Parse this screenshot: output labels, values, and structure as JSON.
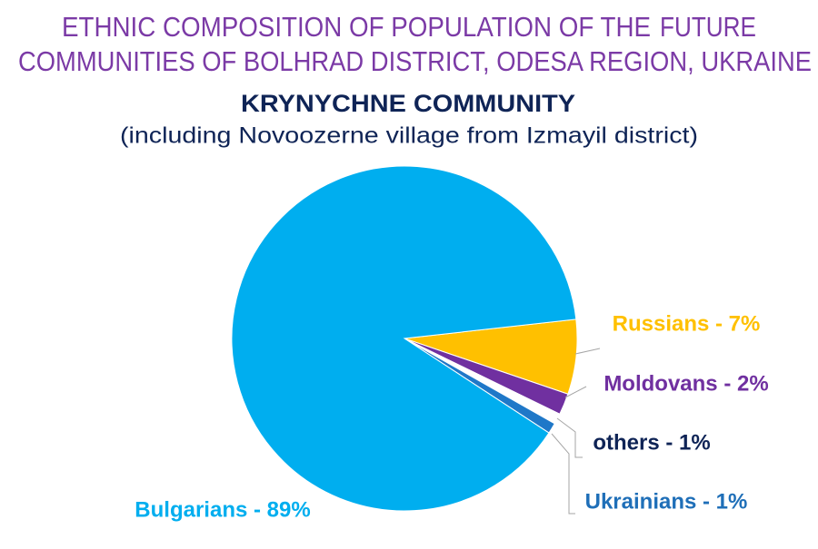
{
  "chart_data": {
    "type": "pie",
    "title": [
      "ETHNIC COMPOSITION OF POPULATION OF THE",
      "FUTURE",
      "COMMUNITIES OF BOLHRAD DISTRICT, ODESA REGION, UKRAINE"
    ],
    "title_colors": [
      "#7b3aa6",
      "#1fa83a",
      "#7b3aa6"
    ],
    "subtitle": "KRYNYCHNE COMMUNITY",
    "note": "(including Novoozerne village from Izmayil district)",
    "values": [
      7,
      2,
      1,
      1,
      89
    ],
    "value_labels": [
      "Russians - 7%",
      "Moldovans - 2%",
      "others - 1%",
      "Ukrainians - 1%",
      "Bulgarians - 89%"
    ],
    "colors": [
      "#ffc000",
      "#7030a0",
      "#ffffff",
      "#1f78c8",
      "#00aeef"
    ],
    "label_colors": [
      "#ffc000",
      "#7030a0",
      "#0f2456",
      "#1f6fb8",
      "#00aeef"
    ]
  }
}
